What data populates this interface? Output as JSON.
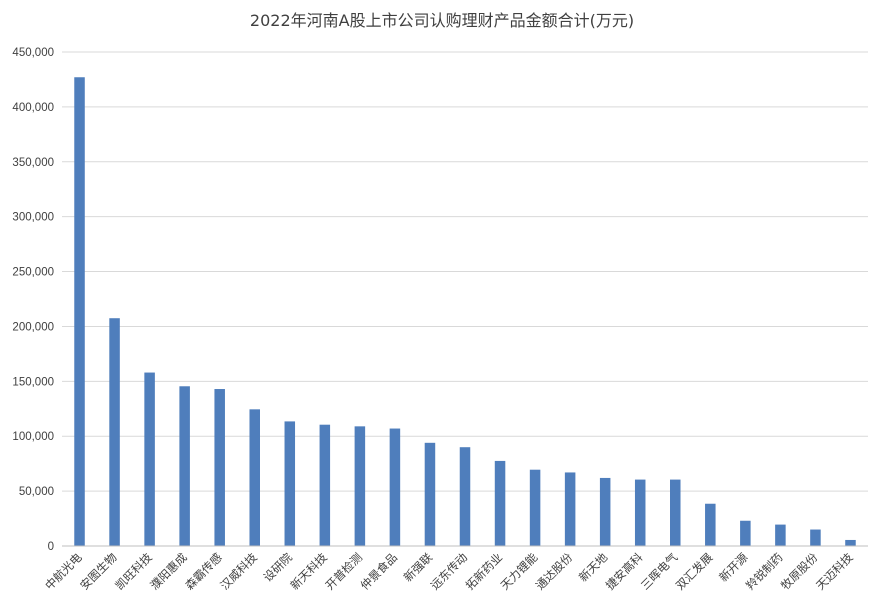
{
  "chart_data": {
    "type": "bar",
    "title": "2022年河南A股上市公司认购理财产品金额合计(万元)",
    "xlabel": "",
    "ylabel": "",
    "ylim": [
      0,
      450000
    ],
    "yticks": [
      0,
      50000,
      100000,
      150000,
      200000,
      250000,
      300000,
      350000,
      400000,
      450000
    ],
    "ytick_labels": [
      "0",
      "50,000",
      "100,000",
      "150,000",
      "200,000",
      "250,000",
      "300,000",
      "350,000",
      "400,000",
      "450,000"
    ],
    "grid": true,
    "legend": "none",
    "bar_color": "#4f7ebc",
    "categories": [
      "中航光电",
      "安图生物",
      "凯旺科技",
      "濮阳惠成",
      "森霸传感",
      "汉威科技",
      "设研院",
      "新天科技",
      "开普检测",
      "仲景食品",
      "新强联",
      "远东传动",
      "拓新药业",
      "天力锂能",
      "通达股份",
      "新天地",
      "捷安高科",
      "三晖电气",
      "双汇发展",
      "新开源",
      "羚锐制药",
      "牧原股份",
      "天迈科技"
    ],
    "values": [
      427000,
      207500,
      158000,
      145500,
      143000,
      124500,
      113500,
      110500,
      109000,
      107000,
      94000,
      90000,
      77500,
      69500,
      67000,
      62000,
      60500,
      60500,
      38500,
      23000,
      19500,
      15000,
      5500
    ]
  }
}
